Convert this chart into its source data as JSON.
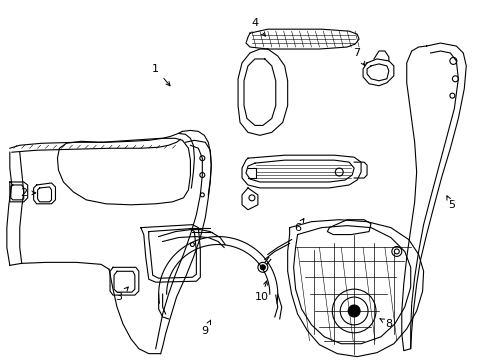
{
  "background_color": "#ffffff",
  "line_color": "#000000",
  "line_width": 0.8,
  "dpi": 100,
  "figsize": [
    4.89,
    3.6
  ],
  "labels": [
    [
      "1",
      155,
      68,
      172,
      88
    ],
    [
      "2",
      22,
      193,
      38,
      193
    ],
    [
      "3",
      118,
      298,
      130,
      285
    ],
    [
      "4",
      255,
      22,
      268,
      38
    ],
    [
      "5",
      453,
      205,
      448,
      195
    ],
    [
      "6",
      298,
      228,
      305,
      218
    ],
    [
      "7",
      358,
      52,
      368,
      68
    ],
    [
      "8",
      390,
      325,
      378,
      318
    ],
    [
      "9",
      205,
      332,
      212,
      318
    ],
    [
      "10",
      262,
      298,
      268,
      278
    ]
  ]
}
